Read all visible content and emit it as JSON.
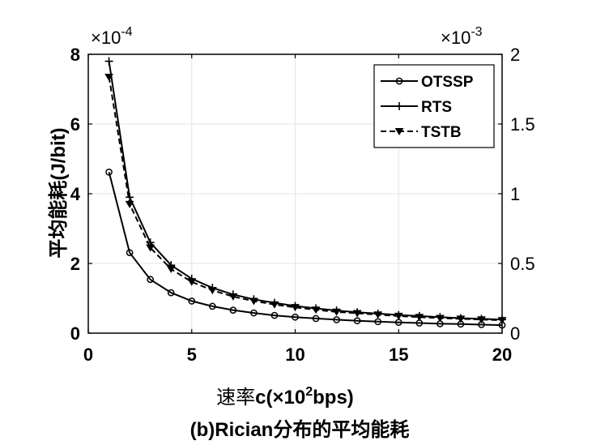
{
  "chart_data": {
    "type": "line",
    "xlabel_prefix": "速率",
    "xlabel_main": "c(×10",
    "xlabel_sup": "2",
    "xlabel_suffix": "bps)",
    "ylabel_left": "平均能耗(J/bit)",
    "caption": "(b)Rician分布的平均能耗",
    "left_exponent": "×10",
    "left_exponent_sup": "-4",
    "right_exponent": "×10",
    "right_exponent_sup": "-3",
    "xlim": [
      0,
      20
    ],
    "ylim_left": [
      0,
      8
    ],
    "ylim_right": [
      0,
      2
    ],
    "xticks": [
      "0",
      "5",
      "10",
      "15",
      "20"
    ],
    "yticks_left": [
      "0",
      "2",
      "4",
      "6",
      "8"
    ],
    "yticks_right": [
      "0",
      "0.5",
      "1",
      "1.5",
      "2"
    ],
    "grid": true,
    "legend_position": "top-right",
    "x": [
      1,
      2,
      3,
      4,
      5,
      6,
      7,
      8,
      9,
      10,
      11,
      12,
      13,
      14,
      15,
      16,
      17,
      18,
      19,
      20
    ],
    "series": [
      {
        "name": "OTSSP",
        "axis": "left",
        "marker": "circle",
        "line": "solid",
        "values": [
          4.62,
          2.31,
          1.54,
          1.16,
          0.92,
          0.77,
          0.66,
          0.58,
          0.51,
          0.46,
          0.42,
          0.385,
          0.355,
          0.33,
          0.31,
          0.29,
          0.27,
          0.26,
          0.245,
          0.23
        ]
      },
      {
        "name": "RTS",
        "axis": "left",
        "marker": "plus",
        "line": "solid",
        "values": [
          7.8,
          3.9,
          2.6,
          1.95,
          1.56,
          1.3,
          1.11,
          0.97,
          0.87,
          0.78,
          0.71,
          0.65,
          0.6,
          0.56,
          0.52,
          0.49,
          0.46,
          0.43,
          0.41,
          0.39
        ]
      },
      {
        "name": "TSTB",
        "axis": "left",
        "marker": "triangle-down",
        "line": "dashed",
        "values": [
          7.35,
          3.7,
          2.45,
          1.84,
          1.47,
          1.23,
          1.05,
          0.92,
          0.82,
          0.74,
          0.67,
          0.61,
          0.57,
          0.53,
          0.49,
          0.46,
          0.43,
          0.41,
          0.39,
          0.37
        ]
      }
    ]
  }
}
